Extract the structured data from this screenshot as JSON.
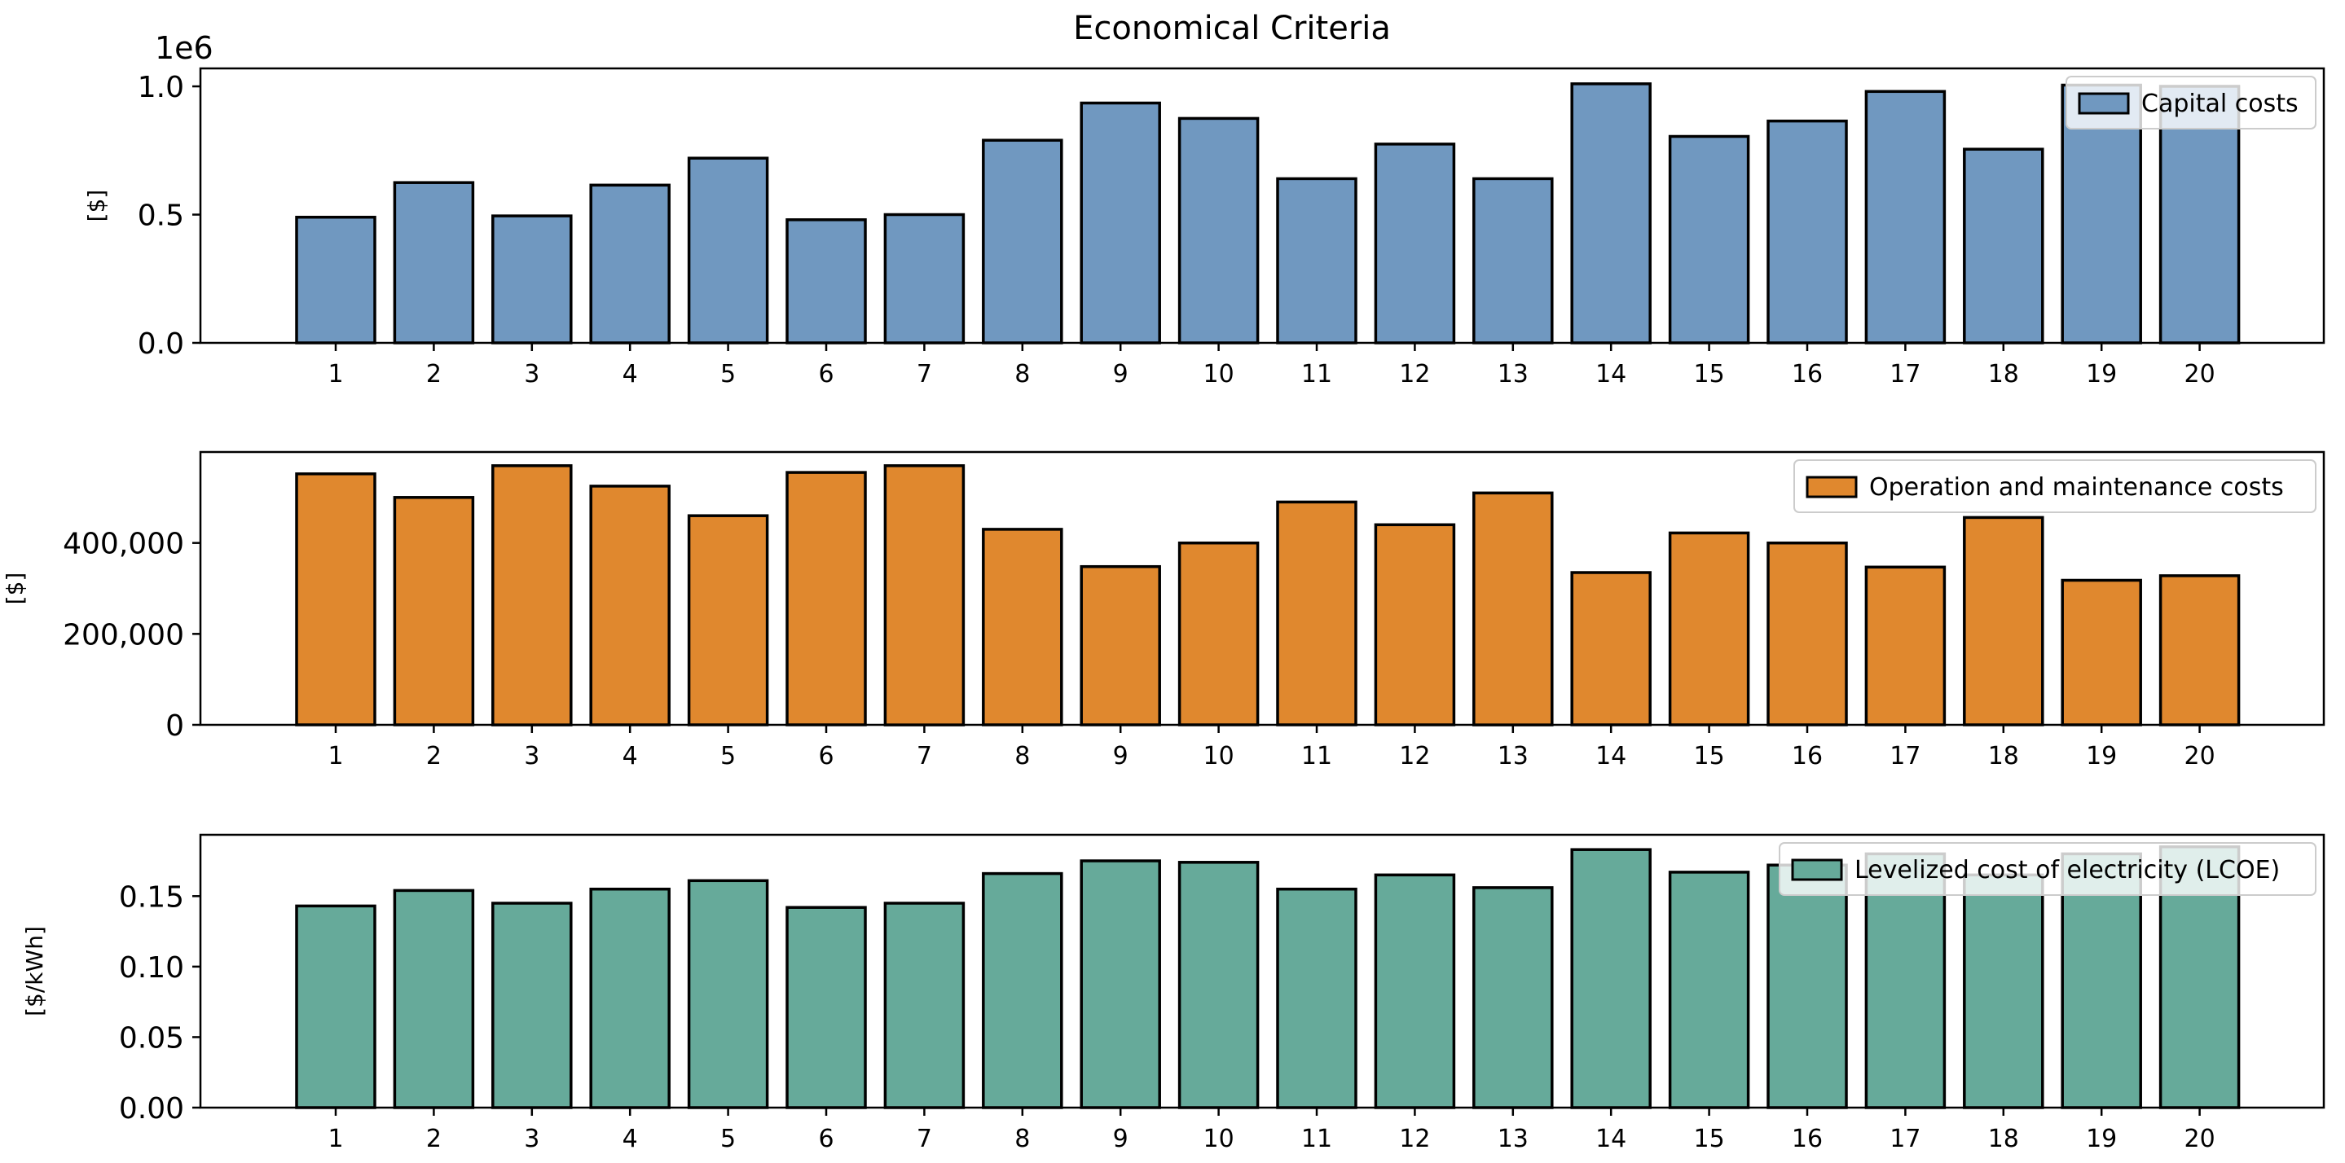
{
  "chart_data": [
    {
      "type": "bar",
      "title": "Economical Criteria",
      "categories": [
        "1",
        "2",
        "3",
        "4",
        "5",
        "6",
        "7",
        "8",
        "9",
        "10",
        "11",
        "12",
        "13",
        "14",
        "15",
        "16",
        "17",
        "18",
        "19",
        "20"
      ],
      "series": [
        {
          "name": "Capital costs",
          "values": [
            490000,
            625000,
            495000,
            615000,
            720000,
            480000,
            500000,
            790000,
            935000,
            875000,
            640000,
            775000,
            640000,
            1010000,
            805000,
            865000,
            980000,
            755000,
            1005000,
            1000000
          ]
        }
      ],
      "ylabel": "[$]",
      "ylim": [
        0,
        1070000
      ],
      "yticks": [
        0,
        500000,
        1000000
      ],
      "ytick_labels": [
        "0.0",
        "0.5",
        "1.0"
      ],
      "offset_text": "1e6",
      "color": "#7098c0",
      "legend_position": "top-right"
    },
    {
      "type": "bar",
      "categories": [
        "1",
        "2",
        "3",
        "4",
        "5",
        "6",
        "7",
        "8",
        "9",
        "10",
        "11",
        "12",
        "13",
        "14",
        "15",
        "16",
        "17",
        "18",
        "19",
        "20"
      ],
      "series": [
        {
          "name": "Operation and maintenance costs",
          "values": [
            552000,
            500000,
            570000,
            525000,
            460000,
            555000,
            570000,
            430000,
            348000,
            400000,
            490000,
            440000,
            510000,
            335000,
            422000,
            400000,
            347000,
            456000,
            318000,
            328000
          ]
        }
      ],
      "ylabel": "[$]",
      "ylim": [
        0,
        600000
      ],
      "yticks": [
        0,
        200000,
        400000
      ],
      "ytick_labels": [
        "0",
        "200,000",
        "400,000"
      ],
      "color": "#e0882e",
      "legend_position": "top-right"
    },
    {
      "type": "bar",
      "categories": [
        "1",
        "2",
        "3",
        "4",
        "5",
        "6",
        "7",
        "8",
        "9",
        "10",
        "11",
        "12",
        "13",
        "14",
        "15",
        "16",
        "17",
        "18",
        "19",
        "20"
      ],
      "series": [
        {
          "name": "Levelized cost of electricity (LCOE)",
          "values": [
            0.143,
            0.154,
            0.145,
            0.155,
            0.161,
            0.142,
            0.145,
            0.166,
            0.175,
            0.174,
            0.155,
            0.165,
            0.156,
            0.183,
            0.167,
            0.172,
            0.18,
            0.165,
            0.18,
            0.185
          ]
        }
      ],
      "ylabel": "[$/kWh]",
      "ylim": [
        0,
        0.1935
      ],
      "yticks": [
        0,
        0.05,
        0.1,
        0.15
      ],
      "ytick_labels": [
        "0.00",
        "0.05",
        "0.10",
        "0.15"
      ],
      "color": "#66aa9a",
      "legend_position": "top-right"
    }
  ]
}
